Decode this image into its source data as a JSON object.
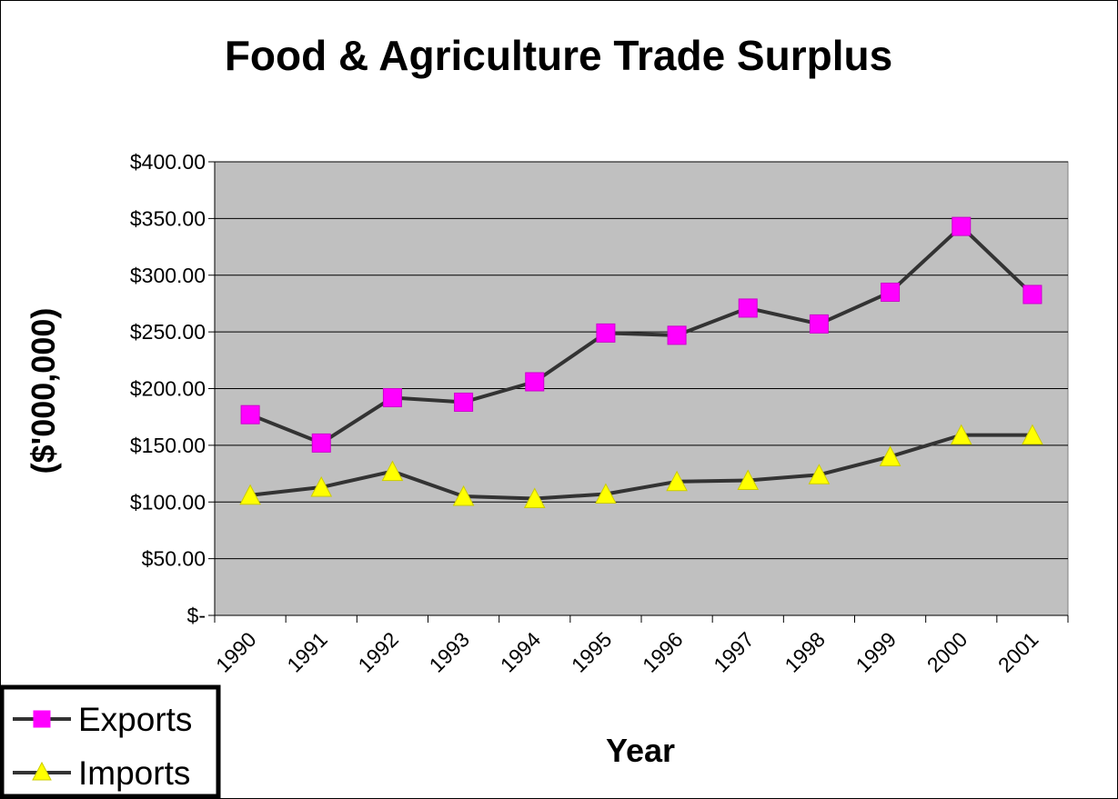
{
  "chart_data": {
    "type": "line",
    "title": "Food & Agriculture Trade Surplus",
    "xlabel": "Year",
    "ylabel": "($'000,000)",
    "categories": [
      "1990",
      "1991",
      "1992",
      "1993",
      "1994",
      "1995",
      "1996",
      "1997",
      "1998",
      "1999",
      "2000",
      "2001"
    ],
    "y_tick_labels": [
      "$-",
      "$50.00",
      "$100.00",
      "$150.00",
      "$200.00",
      "$250.00",
      "$300.00",
      "$350.00",
      "$400.00"
    ],
    "y_ticks": [
      0,
      50,
      100,
      150,
      200,
      250,
      300,
      350,
      400
    ],
    "ylim": [
      0,
      400
    ],
    "grid": true,
    "plot_background": "#c0c0c0",
    "legend_position": "bottom-left",
    "series": [
      {
        "name": "Exports",
        "values": [
          177,
          152,
          192,
          188,
          206,
          249,
          247,
          271,
          257,
          285,
          343,
          283
        ],
        "line_color": "#333333",
        "marker": "square",
        "marker_color": "#ff00ff"
      },
      {
        "name": "Imports",
        "values": [
          106,
          113,
          127,
          105,
          103,
          107,
          118,
          119,
          124,
          140,
          159,
          159
        ],
        "line_color": "#333333",
        "marker": "triangle",
        "marker_color": "#ffff00"
      }
    ]
  }
}
